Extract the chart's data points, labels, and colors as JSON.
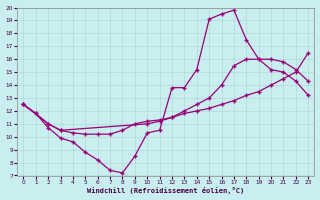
{
  "xlabel": "Windchill (Refroidissement éolien,°C)",
  "bg_color": "#c8eef0",
  "line_color": "#990077",
  "xlim": [
    -0.5,
    23.5
  ],
  "ylim": [
    7,
    20
  ],
  "xticks": [
    0,
    1,
    2,
    3,
    4,
    5,
    6,
    7,
    8,
    9,
    10,
    11,
    12,
    13,
    14,
    15,
    16,
    17,
    18,
    19,
    20,
    21,
    22,
    23
  ],
  "yticks": [
    7,
    8,
    9,
    10,
    11,
    12,
    13,
    14,
    15,
    16,
    17,
    18,
    19,
    20
  ],
  "curves": [
    {
      "x": [
        0,
        1,
        2,
        3,
        4,
        5,
        6,
        7,
        8,
        9,
        10,
        11,
        12,
        13,
        14,
        15,
        16,
        17,
        18,
        19,
        20,
        21,
        22,
        23
      ],
      "y": [
        12.5,
        11.8,
        10.7,
        9.9,
        9.6,
        8.8,
        8.2,
        7.4,
        7.2,
        8.5,
        10.3,
        10.5,
        13.8,
        13.8,
        15.2,
        19.1,
        19.5,
        19.8,
        17.5,
        16.0,
        15.2,
        15.0,
        14.3,
        13.2
      ]
    },
    {
      "x": [
        0,
        2,
        3,
        10,
        11,
        12,
        13,
        14,
        15,
        16,
        17,
        18,
        19,
        20,
        21,
        22,
        23
      ],
      "y": [
        12.5,
        11.0,
        10.5,
        11.0,
        11.2,
        11.5,
        12.0,
        12.5,
        13.0,
        14.0,
        15.5,
        16.0,
        16.0,
        16.0,
        15.8,
        15.2,
        14.3
      ]
    },
    {
      "x": [
        0,
        1,
        2,
        3,
        4,
        5,
        6,
        7,
        8,
        9,
        10,
        11,
        12,
        13,
        14,
        15,
        16,
        17,
        18,
        19,
        20,
        21,
        22,
        23
      ],
      "y": [
        12.5,
        11.8,
        11.0,
        10.5,
        10.3,
        10.2,
        10.2,
        10.2,
        10.5,
        11.0,
        11.2,
        11.3,
        11.5,
        11.8,
        12.0,
        12.2,
        12.5,
        12.8,
        13.2,
        13.5,
        14.0,
        14.5,
        15.0,
        16.5
      ]
    }
  ]
}
